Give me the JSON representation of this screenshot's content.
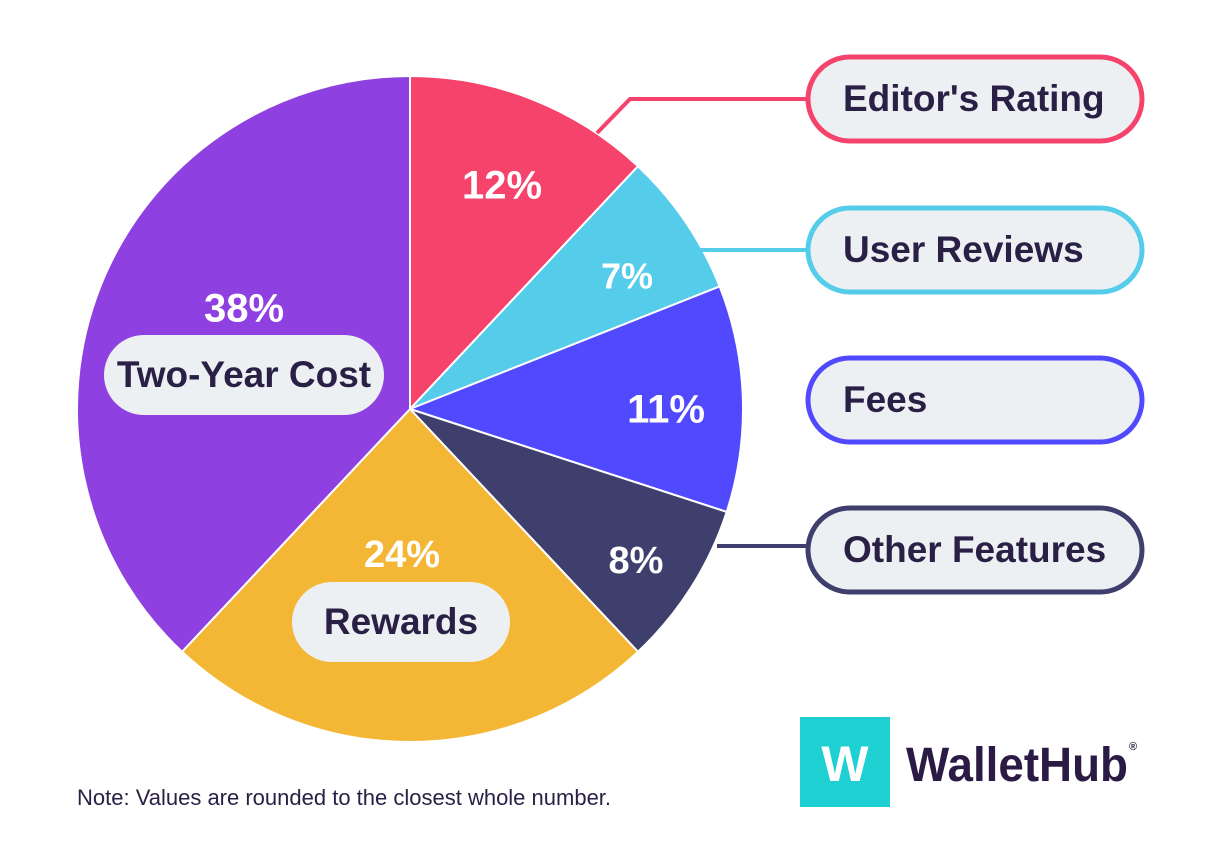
{
  "chart_data": {
    "type": "pie",
    "unit": "%",
    "slices": [
      {
        "label": "Editor's Rating",
        "value": 12,
        "color": "#f5436b"
      },
      {
        "label": "User Reviews",
        "value": 7,
        "color": "#55cce9"
      },
      {
        "label": "Fees",
        "value": 11,
        "color": "#5149fd"
      },
      {
        "label": "Other Features",
        "value": 8,
        "color": "#3e3f6d"
      },
      {
        "label": "Rewards",
        "value": 24,
        "color": "#f4b735"
      },
      {
        "label": "Two-Year Cost",
        "value": 38,
        "color": "#8e40e0"
      }
    ]
  },
  "note": "Note: Values are rounded to the closest whole number.",
  "brand": {
    "logo_letter": "W",
    "name": "WalletHub",
    "registered_mark": "®",
    "logo_color": "#1fd0d3"
  },
  "pill_background": "#edf0f2"
}
